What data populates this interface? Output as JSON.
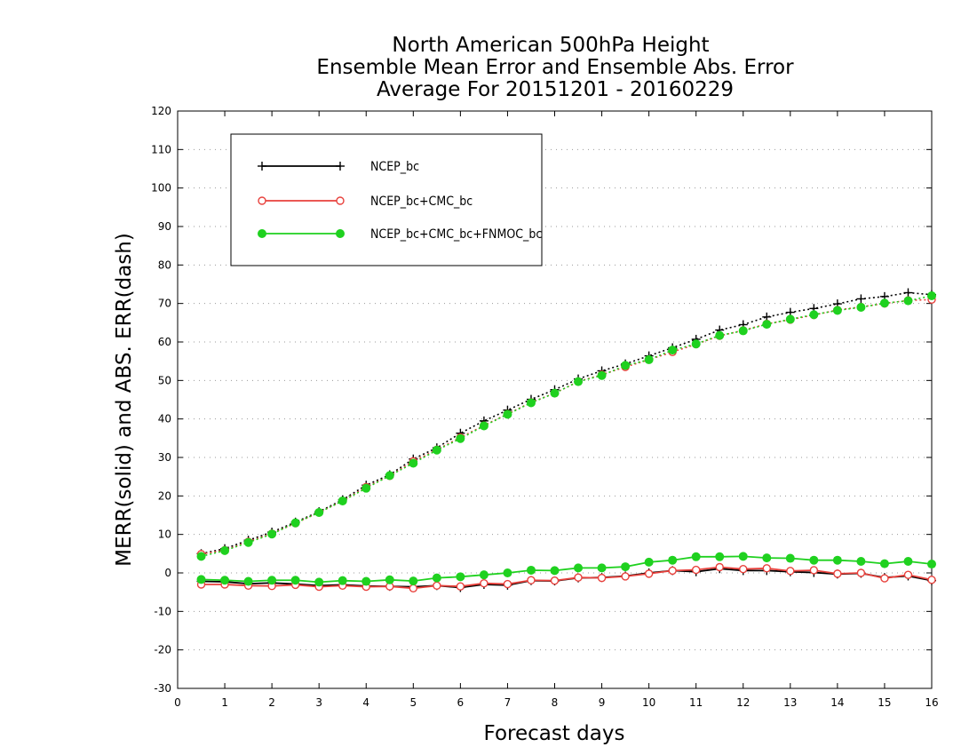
{
  "chart_data": {
    "type": "line",
    "title": "North American 500hPa Height",
    "subtitle": "Ensemble Mean Error and Ensemble Abs. Error",
    "period": "Average For 20151201 - 20160229",
    "xlabel": "Forecast days",
    "ylabel": "MERR(solid) and ABS. ERR(dash)",
    "xlim": [
      0,
      16
    ],
    "ylim": [
      -30,
      120
    ],
    "xticks": [
      0,
      1,
      2,
      3,
      4,
      5,
      6,
      7,
      8,
      9,
      10,
      11,
      12,
      13,
      14,
      15,
      16
    ],
    "yticks": [
      -30,
      -20,
      -10,
      0,
      10,
      20,
      30,
      40,
      50,
      60,
      70,
      80,
      90,
      100,
      110,
      120
    ],
    "grid": true,
    "legend_position": "top-left",
    "x": [
      0.5,
      1,
      1.5,
      2,
      2.5,
      3,
      3.5,
      4,
      4.5,
      5,
      5.5,
      6,
      6.5,
      7,
      7.5,
      8,
      8.5,
      9,
      9.5,
      10,
      10.5,
      11,
      11.5,
      12,
      12.5,
      13,
      13.5,
      14,
      14.5,
      15,
      15.5,
      16
    ],
    "series": [
      {
        "name": "NCEP_bc",
        "color": "#000000",
        "marker": "plus",
        "merr": [
          -2.2,
          -2.3,
          -2.8,
          -2.6,
          -2.9,
          -3.3,
          -3.1,
          -3.4,
          -3.5,
          -3.6,
          -3.3,
          -3.8,
          -3.0,
          -3.2,
          -2.0,
          -2.1,
          -1.3,
          -1.2,
          -0.8,
          0.0,
          0.6,
          0.3,
          1.1,
          0.6,
          0.6,
          0.3,
          0.1,
          -0.3,
          -0.1,
          -1.2,
          -0.8,
          -2.0
        ],
        "abs_err": [
          5.0,
          6.3,
          8.5,
          10.6,
          13.2,
          15.9,
          19.0,
          22.8,
          25.5,
          29.6,
          32.5,
          36.3,
          39.5,
          42.3,
          45.1,
          47.6,
          50.4,
          52.5,
          54.3,
          56.4,
          58.5,
          60.7,
          63.1,
          64.5,
          66.5,
          67.7,
          68.7,
          69.9,
          71.2,
          71.8,
          72.8,
          72.3
        ]
      },
      {
        "name": "NCEP_bc+CMC_bc",
        "color": "#e8413c",
        "marker": "open-circle",
        "merr": [
          -3.0,
          -3.0,
          -3.3,
          -3.4,
          -3.1,
          -3.6,
          -3.3,
          -3.6,
          -3.5,
          -4.0,
          -3.3,
          -3.5,
          -2.7,
          -2.9,
          -1.9,
          -2.0,
          -1.2,
          -1.3,
          -0.9,
          -0.2,
          0.6,
          0.8,
          1.5,
          1.0,
          1.2,
          0.5,
          0.7,
          -0.2,
          0.0,
          -1.4,
          -0.5,
          -1.8
        ],
        "abs_err": [
          4.9,
          5.9,
          8.1,
          10.2,
          12.9,
          15.7,
          18.7,
          22.3,
          25.2,
          29.0,
          32.0,
          35.2,
          38.3,
          41.3,
          44.3,
          46.7,
          49.7,
          51.5,
          53.5,
          55.4,
          57.4,
          59.4,
          61.6,
          63.0,
          64.7,
          65.8,
          67.0,
          68.3,
          69.1,
          70.0,
          70.8,
          71.0
        ]
      },
      {
        "name": "NCEP_bc+CMC_bc+FNMOC_bc",
        "color": "#1fd11f",
        "marker": "filled-circle",
        "merr": [
          -1.7,
          -1.9,
          -2.2,
          -1.9,
          -1.9,
          -2.4,
          -2.0,
          -2.2,
          -1.8,
          -2.1,
          -1.3,
          -1.0,
          -0.5,
          0.0,
          0.7,
          0.6,
          1.3,
          1.3,
          1.6,
          2.8,
          3.3,
          4.2,
          4.2,
          4.3,
          3.9,
          3.8,
          3.3,
          3.3,
          3.0,
          2.4,
          3.0,
          2.3
        ],
        "abs_err": [
          4.3,
          5.8,
          7.9,
          10.1,
          13.0,
          15.7,
          18.7,
          22.0,
          25.3,
          28.5,
          31.9,
          34.9,
          38.2,
          41.2,
          44.2,
          46.7,
          49.7,
          51.3,
          53.9,
          55.4,
          57.9,
          59.5,
          61.7,
          62.9,
          64.6,
          65.9,
          67.1,
          68.2,
          69.0,
          70.1,
          70.7,
          72.0
        ]
      }
    ]
  }
}
